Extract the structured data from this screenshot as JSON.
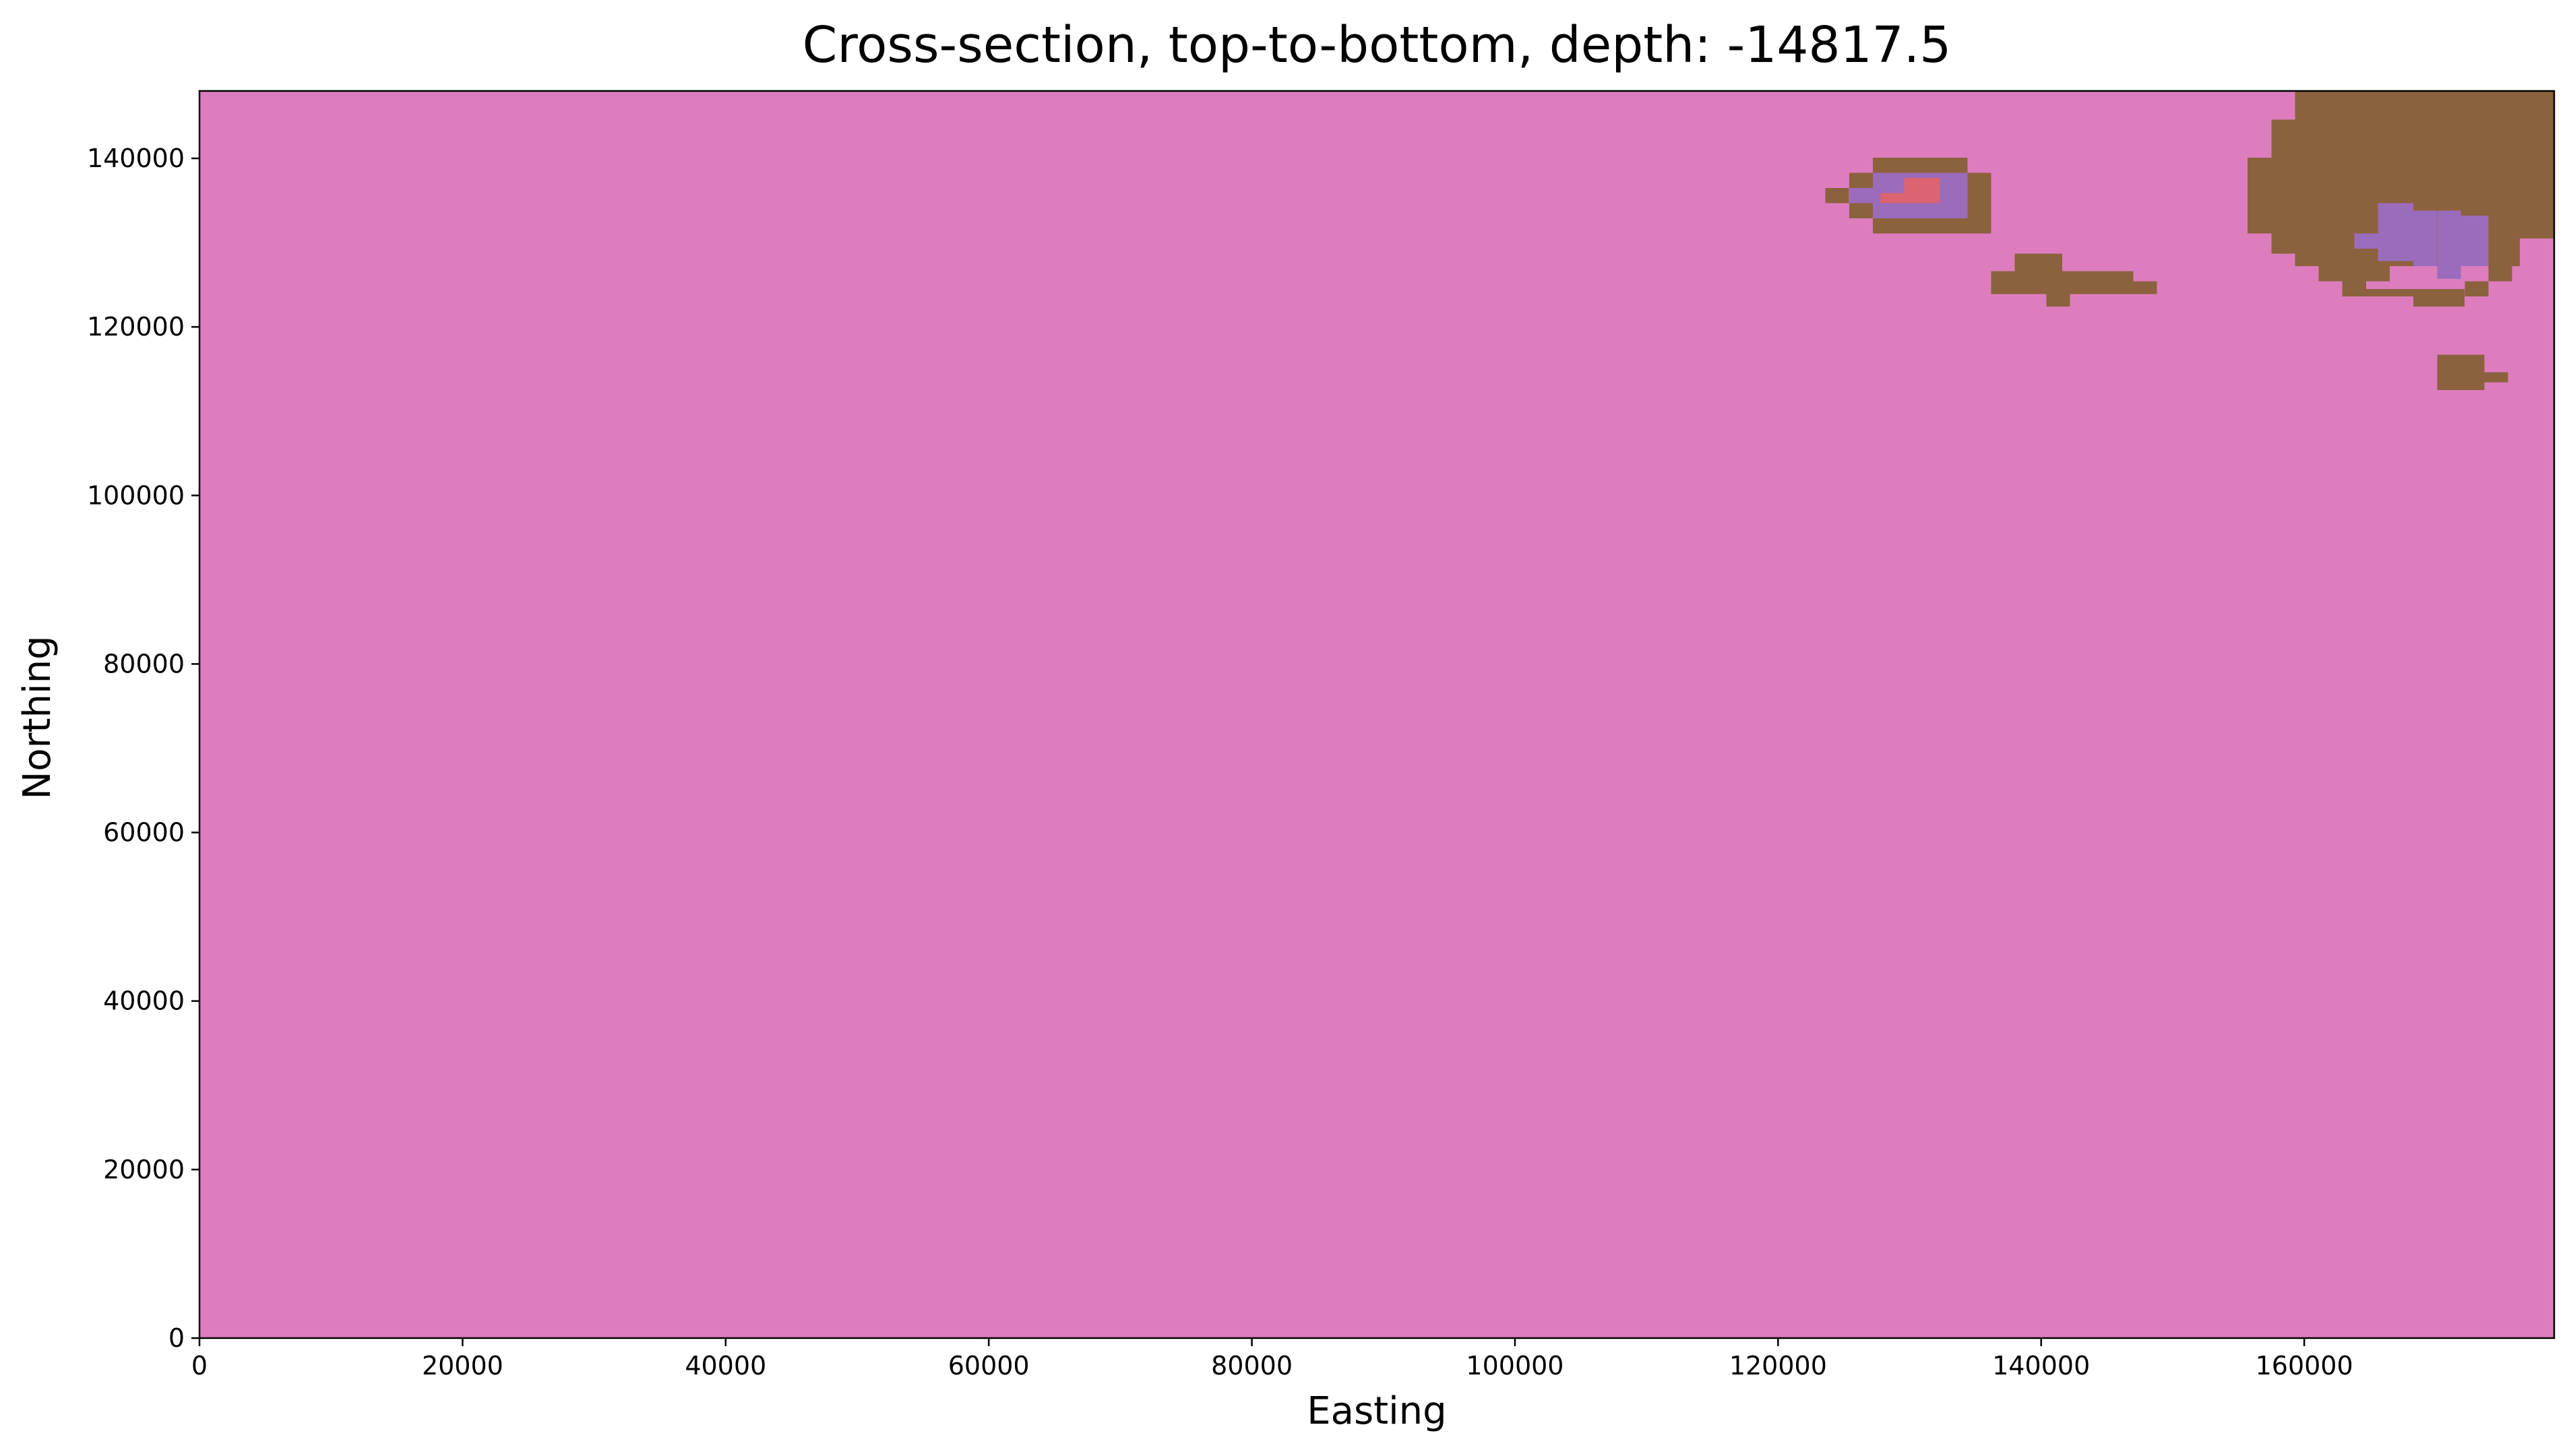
{
  "chart_data": {
    "type": "heatmap",
    "title": "Cross-section, top-to-bottom, depth: -14817.5",
    "xlabel": "Easting",
    "ylabel": "Northing",
    "xlim": [
      0,
      179000
    ],
    "ylim": [
      0,
      148000
    ],
    "x_ticks": [
      {
        "value": 0,
        "label": "0"
      },
      {
        "value": 20000,
        "label": "20000"
      },
      {
        "value": 40000,
        "label": "40000"
      },
      {
        "value": 60000,
        "label": "60000"
      },
      {
        "value": 80000,
        "label": "80000"
      },
      {
        "value": 100000,
        "label": "100000"
      },
      {
        "value": 120000,
        "label": "120000"
      },
      {
        "value": 140000,
        "label": "140000"
      },
      {
        "value": 160000,
        "label": "160000"
      }
    ],
    "y_ticks": [
      {
        "value": 0,
        "label": "0"
      },
      {
        "value": 20000,
        "label": "20000"
      },
      {
        "value": 40000,
        "label": "40000"
      },
      {
        "value": 60000,
        "label": "60000"
      },
      {
        "value": 80000,
        "label": "80000"
      },
      {
        "value": 100000,
        "label": "100000"
      },
      {
        "value": 120000,
        "label": "120000"
      },
      {
        "value": 140000,
        "label": "140000"
      }
    ],
    "background_unit_color": "#dd7dbe",
    "unit_colors": {
      "pink": "#dd7dbe",
      "brown": "#8c613e",
      "purple": "#9b6cbc",
      "red": "#db6470"
    },
    "cell_size": [
      1800,
      1800
    ],
    "regions": [
      {
        "unit": "brown",
        "cells": [
          [
            123600,
            134700,
            125400,
            136500
          ],
          [
            125400,
            132900,
            127200,
            138300
          ],
          [
            127200,
            131100,
            134400,
            140100
          ],
          [
            134400,
            131100,
            136200,
            138300
          ],
          [
            136200,
            123900,
            138000,
            126600
          ],
          [
            138000,
            123900,
            141600,
            128700
          ],
          [
            140400,
            122400,
            142200,
            123900
          ],
          [
            141600,
            123900,
            147000,
            126600
          ],
          [
            147000,
            123900,
            148800,
            125400
          ],
          [
            155700,
            131100,
            157500,
            140100
          ],
          [
            157500,
            128700,
            159300,
            144600
          ],
          [
            159300,
            127200,
            179000,
            148000
          ],
          [
            161100,
            125400,
            166500,
            127200
          ],
          [
            162900,
            123600,
            164700,
            125400
          ],
          [
            164700,
            123600,
            168300,
            124500
          ],
          [
            168300,
            122400,
            172200,
            124500
          ],
          [
            172200,
            123600,
            174000,
            125400
          ],
          [
            174000,
            125400,
            175800,
            127200
          ],
          [
            170100,
            112500,
            173700,
            116700
          ],
          [
            173700,
            113400,
            175500,
            114600
          ]
        ]
      },
      {
        "unit": "pink",
        "cells": [
          [
            176400,
            127200,
            179000,
            130500
          ],
          [
            175800,
            125400,
            179000,
            127200
          ]
        ]
      },
      {
        "unit": "purple",
        "cells": [
          [
            125400,
            134700,
            127200,
            136500
          ],
          [
            127200,
            132900,
            132000,
            138300
          ],
          [
            132000,
            132900,
            134400,
            138300
          ],
          [
            163800,
            129300,
            165600,
            131100
          ],
          [
            165600,
            127800,
            168300,
            134700
          ],
          [
            168300,
            127200,
            170100,
            133800
          ],
          [
            170100,
            125700,
            171900,
            133800
          ],
          [
            171900,
            127200,
            174000,
            133200
          ]
        ]
      },
      {
        "unit": "red",
        "cells": [
          [
            127800,
            134700,
            129600,
            135900
          ],
          [
            129600,
            134700,
            132300,
            137700
          ]
        ]
      }
    ]
  }
}
